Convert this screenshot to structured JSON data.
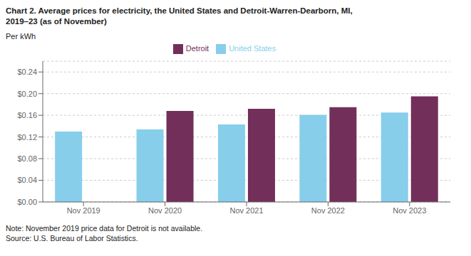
{
  "chart_data": {
    "type": "bar",
    "title": "Chart 2. Average prices for electricity, the United States and Detroit-Warren-Dearborn, MI,",
    "subtitle": "2019–23 (as of November)",
    "y_label": "Per kWh",
    "categories": [
      "Nov 2019",
      "Nov 2020",
      "Nov 2021",
      "Nov 2022",
      "Nov 2023"
    ],
    "series": [
      {
        "name": "United States",
        "color": "#87CEEB",
        "values": [
          0.13,
          0.134,
          0.143,
          0.161,
          0.165
        ]
      },
      {
        "name": "Detroit",
        "color": "#722F5A",
        "values": [
          null,
          0.168,
          0.172,
          0.175,
          0.195
        ]
      }
    ],
    "ylim": [
      0,
      0.26
    ],
    "yticks": [
      {
        "value": 0.0,
        "label": "$0.00"
      },
      {
        "value": 0.04,
        "label": "$0.04"
      },
      {
        "value": 0.08,
        "label": "$0.08"
      },
      {
        "value": 0.12,
        "label": "$0.12"
      },
      {
        "value": 0.16,
        "label": "$0.16"
      },
      {
        "value": 0.2,
        "label": "$0.20"
      },
      {
        "value": 0.24,
        "label": "$0.24"
      }
    ],
    "grid": true,
    "legend": "top",
    "annotations": [
      "Note: November 2019 price data for Detroit is not available.",
      "Source: U.S. Bureau of Labor Statistics."
    ]
  }
}
